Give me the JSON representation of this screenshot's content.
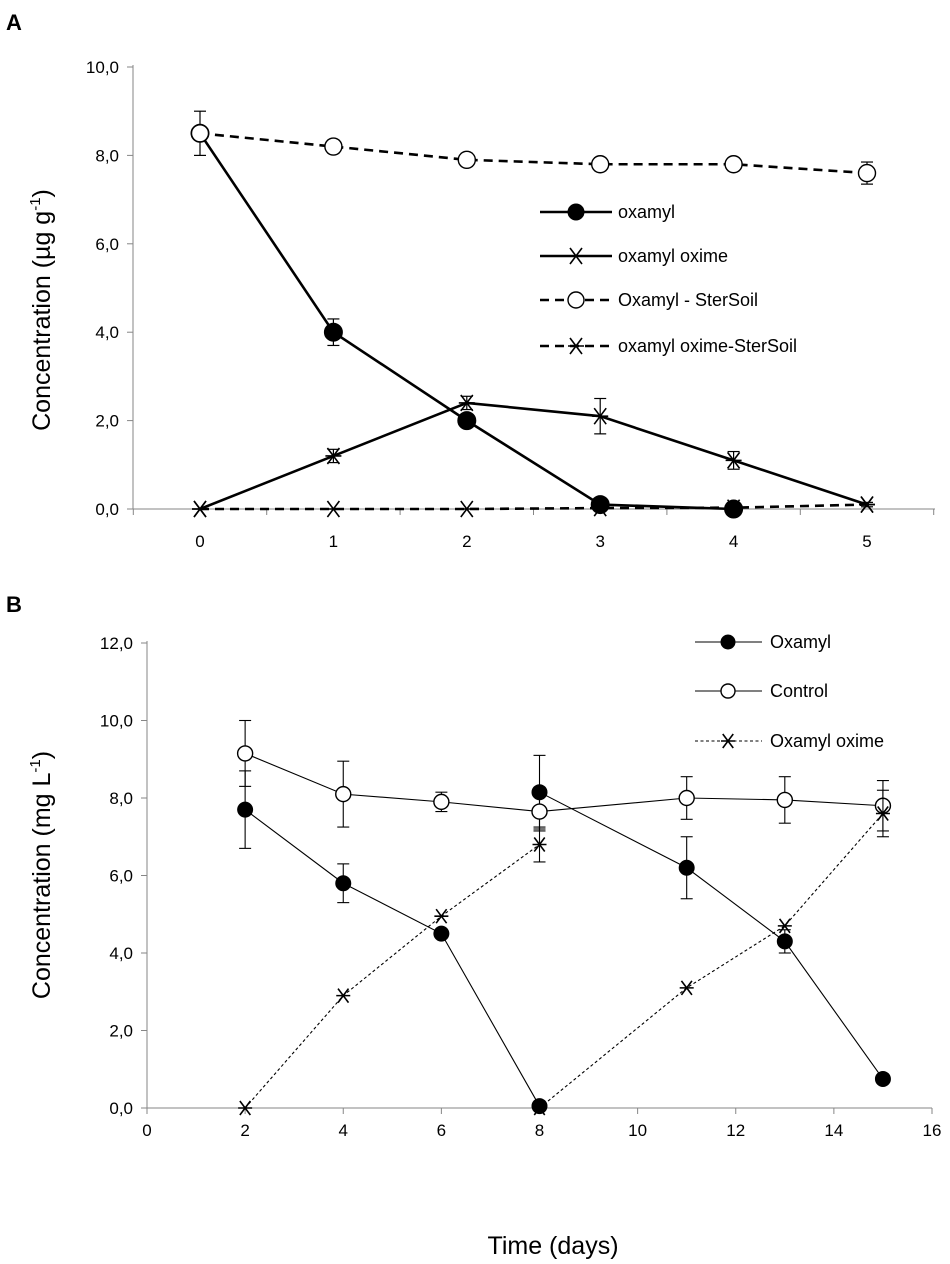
{
  "figure": {
    "x_axis_title": "Time (days)"
  },
  "chart_data": [
    {
      "type": "line",
      "panel_label": "A",
      "title": "",
      "xlabel": "",
      "ylabel": "Concentration (µg g",
      "ylabel_sup": "-1",
      "ylabel_suffix": ")",
      "xlim": [
        -0.55,
        5.55
      ],
      "ylim": [
        0,
        10
      ],
      "yticks": [
        0,
        2,
        4,
        6,
        8,
        10
      ],
      "ytick_labels": [
        "0,0",
        "2,0",
        "4,0",
        "6,0",
        "8,0",
        "10,0"
      ],
      "xticks": [
        0,
        1,
        2,
        3,
        4,
        5
      ],
      "xtick_labels": [
        "0",
        "1",
        "2",
        "3",
        "4",
        "5"
      ],
      "legend_position": "center-right",
      "series": [
        {
          "name": "oxamyl",
          "marker": "filled-circle",
          "line": "solid",
          "color": "#000000",
          "x": [
            0,
            1,
            2,
            3,
            4
          ],
          "y": [
            8.5,
            4.0,
            2.0,
            0.1,
            0.0
          ],
          "err": [
            0.5,
            0.3,
            0.1,
            0.05,
            0.0
          ]
        },
        {
          "name": "oxamyl oxime",
          "marker": "star",
          "line": "solid",
          "color": "#000000",
          "x": [
            0,
            1,
            2,
            3,
            4,
            5
          ],
          "y": [
            0.0,
            1.2,
            2.4,
            2.1,
            1.1,
            0.1
          ],
          "err": [
            0.0,
            0.15,
            0.15,
            0.4,
            0.2,
            0.05
          ]
        },
        {
          "name": "Oxamyl - SterSoil",
          "marker": "open-circle",
          "line": "dashed",
          "color": "#000000",
          "x": [
            0,
            1,
            2,
            3,
            4,
            5
          ],
          "y": [
            8.5,
            8.2,
            7.9,
            7.8,
            7.8,
            7.6
          ],
          "err": [
            0.1,
            0.15,
            0.15,
            0.15,
            0.15,
            0.25
          ]
        },
        {
          "name": "oxamyl oxime-SterSoil",
          "marker": "star",
          "line": "dashed",
          "color": "#000000",
          "x": [
            0,
            1,
            2,
            3,
            4,
            5
          ],
          "y": [
            0.0,
            0.0,
            0.0,
            0.02,
            0.03,
            0.1
          ],
          "err": [
            0,
            0,
            0,
            0,
            0,
            0
          ]
        }
      ]
    },
    {
      "type": "line",
      "panel_label": "B",
      "title": "",
      "xlabel": "Time (days)",
      "ylabel": "Concentration (mg L",
      "ylabel_sup": "-1",
      "ylabel_suffix": ")",
      "xlim": [
        0,
        16
      ],
      "ylim": [
        0,
        12
      ],
      "yticks": [
        0,
        2,
        4,
        6,
        8,
        10,
        12
      ],
      "ytick_labels": [
        "0,0",
        "2,0",
        "4,0",
        "6,0",
        "8,0",
        "10,0",
        "12,0"
      ],
      "xticks": [
        0,
        2,
        4,
        6,
        8,
        10,
        12,
        14,
        16
      ],
      "xtick_labels": [
        "0",
        "2",
        "4",
        "6",
        "8",
        "10",
        "12",
        "14",
        "16"
      ],
      "legend_position": "top-right",
      "series": [
        {
          "name": "Oxamyl",
          "marker": "filled-circle",
          "line": "solid-thin",
          "color": "#000000",
          "segments": [
            {
              "x": [
                2,
                4,
                6,
                8
              ],
              "y": [
                7.7,
                5.8,
                4.5,
                0.05
              ],
              "err": [
                1.0,
                0.5,
                0.1,
                0.0
              ]
            },
            {
              "x": [
                8,
                11,
                13,
                15
              ],
              "y": [
                8.15,
                6.2,
                4.3,
                0.75
              ],
              "err": [
                0.95,
                0.8,
                0.3,
                0.0
              ]
            }
          ]
        },
        {
          "name": "Control",
          "marker": "open-circle",
          "line": "solid-thin",
          "color": "#000000",
          "segments": [
            {
              "x": [
                2,
                4,
                6,
                8,
                11,
                13,
                15
              ],
              "y": [
                9.15,
                8.1,
                7.9,
                7.65,
                8.0,
                7.95,
                7.8
              ],
              "err": [
                0.85,
                0.85,
                0.25,
                0.5,
                0.55,
                0.6,
                0.65
              ]
            }
          ]
        },
        {
          "name": "Oxamyl oxime",
          "marker": "star",
          "line": "dotted-thin",
          "color": "#000000",
          "segments": [
            {
              "x": [
                2,
                4,
                6,
                8
              ],
              "y": [
                0.0,
                2.9,
                4.95,
                6.8
              ],
              "err": [
                0,
                0,
                0,
                0.45
              ]
            },
            {
              "x": [
                8,
                11,
                13,
                15
              ],
              "y": [
                0.0,
                3.1,
                4.7,
                7.6
              ],
              "err": [
                0,
                0,
                0,
                0.6
              ]
            }
          ]
        }
      ]
    }
  ]
}
